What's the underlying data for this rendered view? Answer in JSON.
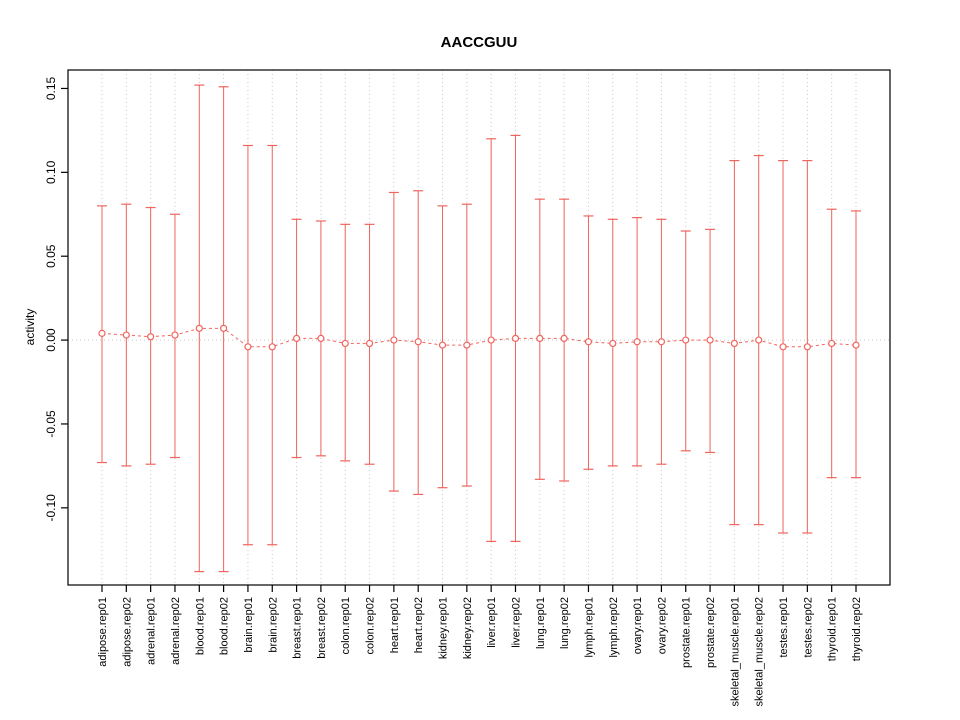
{
  "page": {
    "background": "#ffffff"
  },
  "chart_data": {
    "type": "scatter",
    "variant": "points-with-error-bars",
    "title": "AACCGUU",
    "xlabel": "",
    "ylabel": "activity",
    "ylim": [
      -0.146,
      0.161
    ],
    "yticks": [
      -0.1,
      -0.05,
      0.0,
      0.05,
      0.1,
      0.15
    ],
    "grid": {
      "vertical_dotted_per_category": true,
      "horizontal_dotted_at_zero": true
    },
    "legend_position": "none",
    "categories": [
      "adipose.rep01",
      "adipose.rep02",
      "adrenal.rep01",
      "adrenal.rep02",
      "blood.rep01",
      "blood.rep02",
      "brain.rep01",
      "brain.rep02",
      "breast.rep01",
      "breast.rep02",
      "colon.rep01",
      "colon.rep02",
      "heart.rep01",
      "heart.rep02",
      "kidney.rep01",
      "kidney.rep02",
      "liver.rep01",
      "liver.rep02",
      "lung.rep01",
      "lung.rep02",
      "lymph.rep01",
      "lymph.rep02",
      "ovary.rep01",
      "ovary.rep02",
      "prostate.rep01",
      "prostate.rep02",
      "skeletal_muscle.rep01",
      "skeletal_muscle.rep02",
      "testes.rep01",
      "testes.rep02",
      "thyroid.rep01",
      "thyroid.rep02"
    ],
    "series": [
      {
        "name": "activity",
        "center": [
          0.004,
          0.003,
          0.002,
          0.003,
          0.007,
          0.007,
          -0.004,
          -0.004,
          0.001,
          0.001,
          -0.002,
          -0.002,
          0.0,
          -0.001,
          -0.003,
          -0.003,
          0.0,
          0.001,
          0.001,
          0.001,
          -0.001,
          -0.002,
          -0.001,
          -0.001,
          0.0,
          0.0,
          -0.002,
          0.0,
          -0.004,
          -0.004,
          -0.002,
          -0.003
        ],
        "upper": [
          0.08,
          0.081,
          0.079,
          0.075,
          0.152,
          0.151,
          0.116,
          0.116,
          0.072,
          0.071,
          0.069,
          0.069,
          0.088,
          0.089,
          0.08,
          0.081,
          0.12,
          0.122,
          0.084,
          0.084,
          0.074,
          0.072,
          0.073,
          0.072,
          0.065,
          0.066,
          0.107,
          0.11,
          0.107,
          0.107,
          0.078,
          0.077
        ],
        "lower": [
          -0.073,
          -0.075,
          -0.074,
          -0.07,
          -0.138,
          -0.138,
          -0.122,
          -0.122,
          -0.07,
          -0.069,
          -0.072,
          -0.074,
          -0.09,
          -0.092,
          -0.088,
          -0.087,
          -0.12,
          -0.12,
          -0.083,
          -0.084,
          -0.077,
          -0.075,
          -0.075,
          -0.074,
          -0.066,
          -0.067,
          -0.11,
          -0.11,
          -0.115,
          -0.115,
          -0.082,
          -0.082
        ]
      }
    ],
    "colors": {
      "series": "#f0645e",
      "grid": "#c9c9c9",
      "zero_line": "#c9c9c9",
      "frame": "#000000",
      "tick": "#000000"
    }
  }
}
